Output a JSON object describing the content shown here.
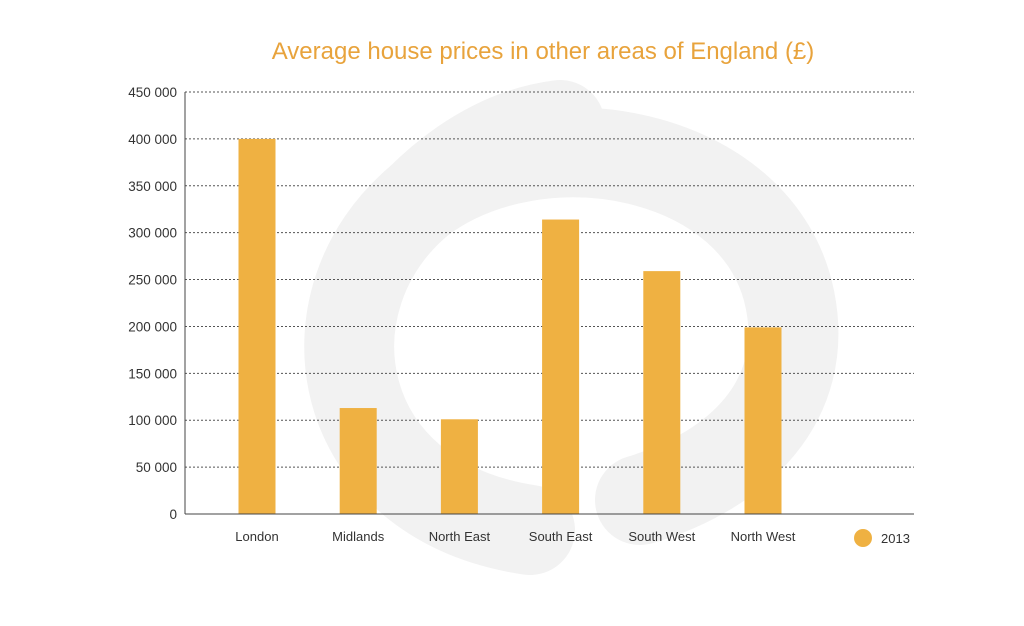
{
  "chart_data": {
    "type": "bar",
    "title": "Average house prices in other areas of England (£)",
    "xlabel": "",
    "ylabel": "",
    "categories": [
      "London",
      "Midlands",
      "North  East",
      "South East",
      "South West",
      "North West"
    ],
    "series": [
      {
        "name": "2013",
        "values": [
          400000,
          113000,
          101000,
          314000,
          259000,
          199000
        ]
      }
    ],
    "ylim": [
      0,
      450000
    ],
    "yticks": [
      0,
      50000,
      100000,
      150000,
      200000,
      250000,
      300000,
      350000,
      400000,
      450000
    ],
    "ytick_labels": [
      "0",
      "50 000",
      "100 000",
      "150 000",
      "200 000",
      "250 000",
      "300 000",
      "350 000",
      "400 000",
      "450 000"
    ],
    "grid": "dotted horizontal",
    "legend_position": "bottom-right"
  },
  "colors": {
    "bar": "#efb142",
    "title": "#e8a33c",
    "grid": "#555555",
    "watermark": "#f3f3f3"
  }
}
